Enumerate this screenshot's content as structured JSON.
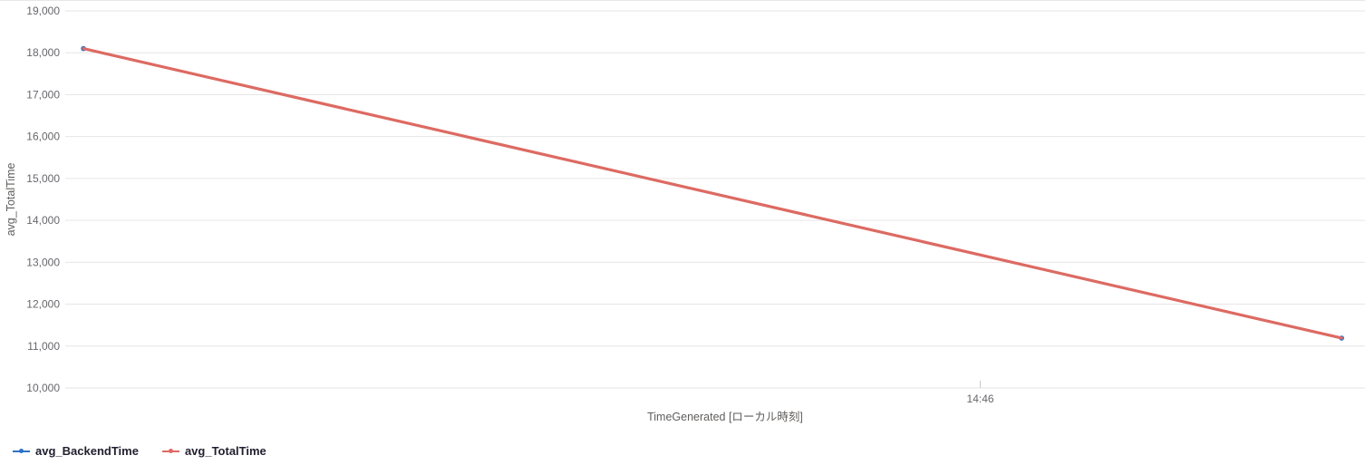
{
  "chart_data": {
    "type": "line",
    "title": "",
    "xlabel": "TimeGenerated [ローカル時刻]",
    "ylabel": "avg_TotalTime",
    "ylim": [
      10000,
      19000
    ],
    "y_tick_interval": 1000,
    "y_ticks": [
      "19,000",
      "18,000",
      "17,000",
      "16,000",
      "15,000",
      "14,000",
      "13,000",
      "12,000",
      "11,000",
      "10,000"
    ],
    "x_ticks": [
      {
        "label": "14:46",
        "frac": 0.704
      }
    ],
    "grid": "horizontal",
    "legend_position": "bottom-left",
    "colors": {
      "gridline": "#e6e6e6",
      "tick_text": "#67676c",
      "axis_title_text": "#605e5c",
      "legend_text": "#201f2e"
    },
    "series": [
      {
        "name": "avg_BackendTime",
        "color": "#2e72c8",
        "x_frac": [
          0.014,
          0.982
        ],
        "values": [
          18100,
          11190
        ]
      },
      {
        "name": "avg_TotalTime",
        "color": "#dd6a62",
        "x_frac": [
          0.014,
          0.982
        ],
        "values": [
          18100,
          11190
        ]
      }
    ]
  }
}
